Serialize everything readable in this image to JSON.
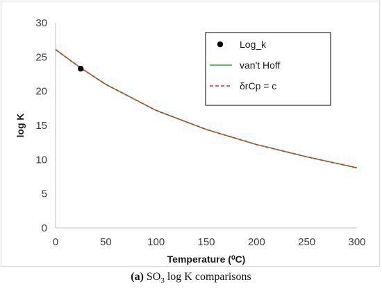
{
  "chart_data": {
    "type": "line",
    "title": "",
    "xlabel": "Temperature (⁰C)",
    "ylabel": "log K",
    "xlim": [
      0,
      300
    ],
    "ylim": [
      0,
      30
    ],
    "xticks": [
      0,
      50,
      100,
      150,
      200,
      250,
      300
    ],
    "yticks": [
      0,
      5,
      10,
      15,
      20,
      25,
      30
    ],
    "grid": false,
    "legend_position": "top-right",
    "series": [
      {
        "name": "Log_k",
        "kind": "scatter",
        "color": "#000000",
        "x": [
          25
        ],
        "y": [
          23.3
        ]
      },
      {
        "name": "van't Hoff",
        "kind": "line",
        "style": "solid",
        "color": "#2ca02c",
        "x": [
          0,
          25,
          50,
          100,
          150,
          200,
          250,
          300
        ],
        "y": [
          26.1,
          23.4,
          21.0,
          17.2,
          14.4,
          12.2,
          10.4,
          8.8
        ]
      },
      {
        "name": "δrCp = c",
        "kind": "line",
        "style": "dashed",
        "color": "#e0262a",
        "x": [
          0,
          25,
          50,
          100,
          150,
          200,
          250,
          300
        ],
        "y": [
          26.1,
          23.4,
          21.0,
          17.2,
          14.4,
          12.2,
          10.4,
          8.8
        ]
      }
    ]
  },
  "caption": {
    "label": "(a)",
    "text_prefix": " SO",
    "subscript": "3",
    "text_suffix": " log K comparisons"
  }
}
